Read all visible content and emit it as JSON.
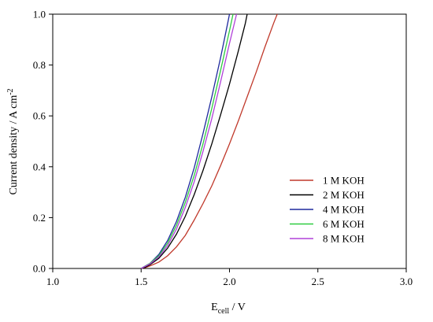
{
  "chart_data": {
    "type": "line",
    "title": "",
    "xlabel_main": "E",
    "xlabel_sub": "cell",
    "xlabel_unit": " / V",
    "ylabel_main": "Current density / A cm",
    "ylabel_sup": "-2",
    "xlim": [
      1.0,
      3.0
    ],
    "ylim": [
      0.0,
      1.0
    ],
    "x_ticks": [
      "1.0",
      "1.5",
      "2.0",
      "2.5",
      "3.0"
    ],
    "y_ticks": [
      "0.0",
      "0.2",
      "0.4",
      "0.6",
      "0.8",
      "1.0"
    ],
    "x_tick_values": [
      1.0,
      1.5,
      2.0,
      2.5,
      3.0
    ],
    "y_tick_values": [
      0.0,
      0.2,
      0.4,
      0.6,
      0.8,
      1.0
    ],
    "grid": false,
    "legend_position": "lower-right",
    "series": [
      {
        "name": "1 M KOH",
        "color": "#c0392b",
        "points": [
          [
            1.51,
            0.0
          ],
          [
            1.55,
            0.01
          ],
          [
            1.6,
            0.025
          ],
          [
            1.65,
            0.05
          ],
          [
            1.7,
            0.085
          ],
          [
            1.75,
            0.13
          ],
          [
            1.8,
            0.19
          ],
          [
            1.85,
            0.255
          ],
          [
            1.9,
            0.325
          ],
          [
            1.95,
            0.405
          ],
          [
            2.0,
            0.49
          ],
          [
            2.05,
            0.58
          ],
          [
            2.1,
            0.675
          ],
          [
            2.15,
            0.77
          ],
          [
            2.2,
            0.87
          ],
          [
            2.25,
            0.965
          ],
          [
            2.27,
            1.0
          ]
        ]
      },
      {
        "name": "2 M KOH",
        "color": "#000000",
        "points": [
          [
            1.51,
            0.0
          ],
          [
            1.55,
            0.015
          ],
          [
            1.6,
            0.04
          ],
          [
            1.65,
            0.08
          ],
          [
            1.7,
            0.135
          ],
          [
            1.75,
            0.205
          ],
          [
            1.8,
            0.29
          ],
          [
            1.85,
            0.385
          ],
          [
            1.9,
            0.49
          ],
          [
            1.95,
            0.605
          ],
          [
            2.0,
            0.725
          ],
          [
            2.05,
            0.855
          ],
          [
            2.09,
            0.965
          ],
          [
            2.1,
            1.0
          ]
        ]
      },
      {
        "name": "4 M KOH",
        "color": "#1f2a9e",
        "points": [
          [
            1.5,
            0.0
          ],
          [
            1.55,
            0.02
          ],
          [
            1.6,
            0.055
          ],
          [
            1.65,
            0.11
          ],
          [
            1.7,
            0.185
          ],
          [
            1.75,
            0.28
          ],
          [
            1.8,
            0.395
          ],
          [
            1.85,
            0.53
          ],
          [
            1.9,
            0.675
          ],
          [
            1.95,
            0.83
          ],
          [
            1.99,
            0.965
          ],
          [
            2.0,
            1.0
          ]
        ]
      },
      {
        "name": "6 M KOH",
        "color": "#2ecc40",
        "points": [
          [
            1.5,
            0.0
          ],
          [
            1.55,
            0.02
          ],
          [
            1.6,
            0.05
          ],
          [
            1.65,
            0.1
          ],
          [
            1.7,
            0.17
          ],
          [
            1.75,
            0.26
          ],
          [
            1.8,
            0.365
          ],
          [
            1.85,
            0.49
          ],
          [
            1.9,
            0.63
          ],
          [
            1.95,
            0.78
          ],
          [
            2.0,
            0.935
          ],
          [
            2.02,
            1.0
          ]
        ]
      },
      {
        "name": "8 M KOH",
        "color": "#b040d8",
        "points": [
          [
            1.5,
            0.0
          ],
          [
            1.55,
            0.018
          ],
          [
            1.6,
            0.045
          ],
          [
            1.65,
            0.09
          ],
          [
            1.7,
            0.155
          ],
          [
            1.75,
            0.24
          ],
          [
            1.8,
            0.34
          ],
          [
            1.85,
            0.46
          ],
          [
            1.9,
            0.59
          ],
          [
            1.95,
            0.735
          ],
          [
            2.0,
            0.885
          ],
          [
            2.04,
            1.0
          ]
        ]
      }
    ]
  }
}
